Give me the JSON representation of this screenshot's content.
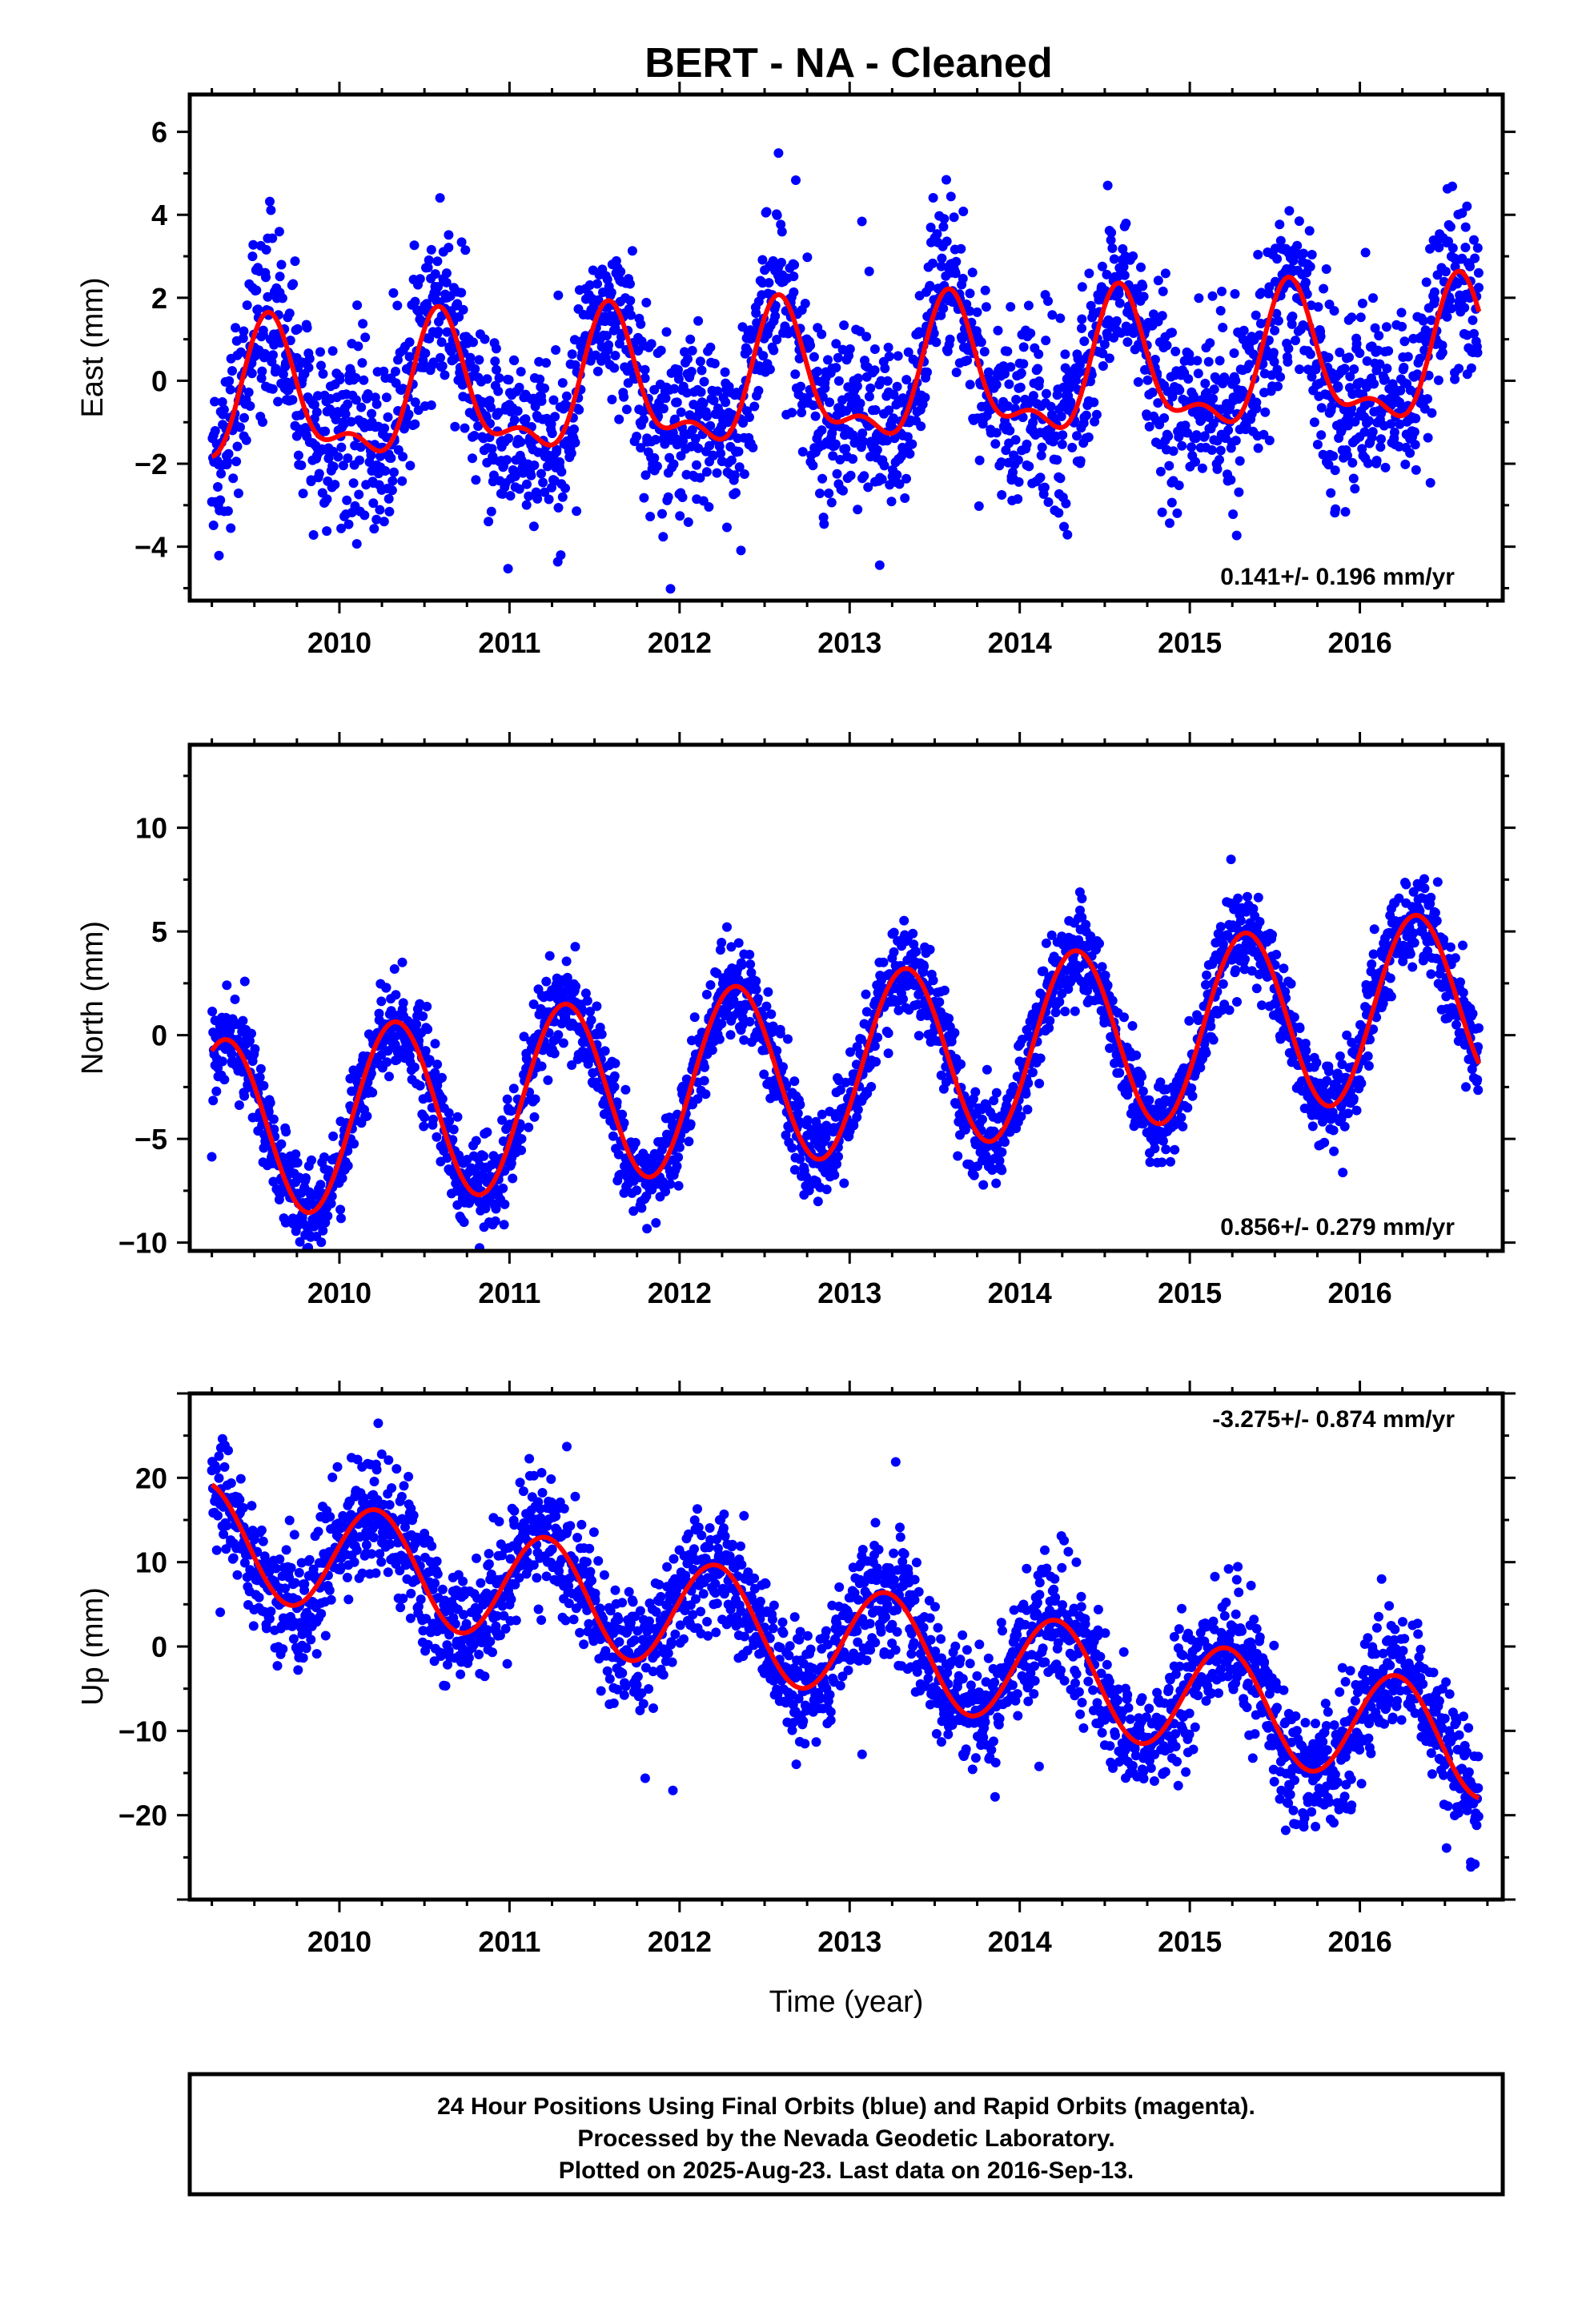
{
  "title": "BERT  - NA - Cleaned",
  "colors": {
    "points": "#0000ff",
    "fit": "#ff0000",
    "frame": "#000000"
  },
  "footer": {
    "line1": "24 Hour Positions Using Final Orbits (blue) and Rapid Orbits (magenta).",
    "line2": "Processed by the Nevada Geodetic Laboratory.",
    "line3": "Plotted on 2025-Aug-23. Last data on 2016-Sep-13."
  },
  "chart_data": [
    {
      "type": "scatter",
      "ylabel": "East (mm)",
      "xlabel": "",
      "xlim": [
        2009.12,
        2016.84
      ],
      "ylim": [
        -5.3,
        6.9
      ],
      "xticks": [
        "2010",
        "2011",
        "2012",
        "2013",
        "2014",
        "2015",
        "2016"
      ],
      "yticks": [
        "−4",
        "−2",
        "0",
        "2",
        "4",
        "6"
      ],
      "ytick_values": [
        -4,
        -2,
        0,
        2,
        4,
        6
      ],
      "rate": "0.141+/- 0.196 mm/yr",
      "rate_position": "bottom-right",
      "fit": {
        "offset": -0.05,
        "trend": 0.141,
        "annual_sin": -0.85,
        "annual_cos": -1.25,
        "semiannual_sin": 0.55,
        "semiannual_cos": 0.4
      },
      "noise": 1.05,
      "series": [
        {
          "label": "final orbits (blue)",
          "x_start": 2009.25,
          "x_end": 2016.7,
          "count": 2600
        }
      ]
    },
    {
      "type": "scatter",
      "ylabel": "North (mm)",
      "xlabel": "",
      "xlim": [
        2009.12,
        2016.84
      ],
      "ylim": [
        -10.4,
        14
      ],
      "xticks": [
        "2010",
        "2011",
        "2012",
        "2013",
        "2014",
        "2015",
        "2016"
      ],
      "yticks": [
        "−10",
        "−5",
        "0",
        "5",
        "10"
      ],
      "ytick_values": [
        -10,
        -5,
        0,
        5,
        10
      ],
      "rate": "0.856+/- 0.279 mm/yr",
      "rate_position": "bottom-right",
      "fit": {
        "offset": -1.45,
        "trend": 0.856,
        "annual_sin": 3.9,
        "annual_cos": -2.0,
        "semiannual_sin": 0.0,
        "semiannual_cos": 0.0
      },
      "noise": 1.1,
      "series": [
        {
          "label": "final orbits (blue)",
          "x_start": 2009.25,
          "x_end": 2016.7,
          "count": 2600
        }
      ]
    },
    {
      "type": "scatter",
      "ylabel": "Up (mm)",
      "xlabel": "Time (year)",
      "xlim": [
        2009.12,
        2016.84
      ],
      "ylim": [
        -30,
        30
      ],
      "xticks": [
        "2010",
        "2011",
        "2012",
        "2013",
        "2014",
        "2015",
        "2016"
      ],
      "yticks": [
        "−20",
        "−10",
        "0",
        "10",
        "20"
      ],
      "ytick_values": [
        -20,
        -10,
        0,
        10,
        20
      ],
      "rate": "-3.275+/- 0.874 mm/yr",
      "rate_position": "top-right",
      "fit": {
        "offset": 0.6,
        "trend": -3.275,
        "annual_sin": 6.3,
        "annual_cos": 1.5,
        "semiannual_sin": 0.0,
        "semiannual_cos": 0.0
      },
      "noise": 3.6,
      "series": [
        {
          "label": "final orbits (blue)",
          "x_start": 2009.25,
          "x_end": 2016.7,
          "count": 2600
        }
      ]
    }
  ]
}
